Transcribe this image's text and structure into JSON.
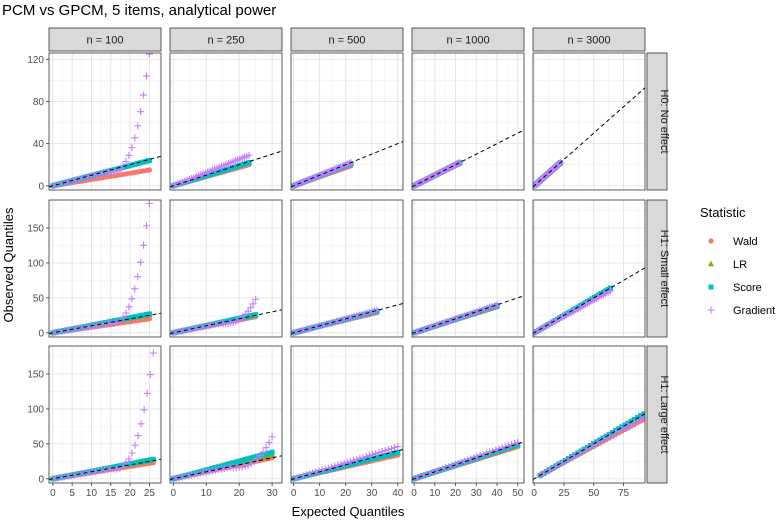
{
  "chart_data": {
    "type": "scatter",
    "title": "PCM vs GPCM, 5 items, analytical power",
    "xlabel": "Expected Quantiles",
    "ylabel": "Observed Quantiles",
    "facet_columns": [
      "n = 100",
      "n = 250",
      "n = 500",
      "n = 1000",
      "n = 3000"
    ],
    "facet_rows": [
      "H0: No effect",
      "H1: Small effect",
      "H1: Large effect"
    ],
    "grid": true,
    "legend": {
      "title": "Statistic",
      "placement": "right",
      "entries": [
        {
          "name": "Wald",
          "shape": "circle",
          "color": "#F8766D"
        },
        {
          "name": "LR",
          "shape": "triangle",
          "color": "#7CAE00"
        },
        {
          "name": "Score",
          "shape": "square",
          "color": "#00BFC4"
        },
        {
          "name": "Gradient",
          "shape": "plus",
          "color": "#C77CFF"
        }
      ]
    },
    "reference_line": {
      "style": "dashed",
      "color": "#000000",
      "description": "identity line y = x"
    },
    "panels": [
      {
        "row": 0,
        "col": 0,
        "xlim": [
          -1,
          28
        ],
        "ylim": [
          -4,
          126
        ],
        "xticks": [
          0,
          5,
          10,
          15,
          20,
          25
        ],
        "yticks": [
          0,
          40,
          80,
          120
        ],
        "xmax_data": 25,
        "endpoints": {
          "Wald": 15,
          "LR": 24,
          "Score": 24,
          "Gradient": 125
        }
      },
      {
        "row": 0,
        "col": 1,
        "xlim": [
          -1,
          33
        ],
        "ylim": [
          -4,
          126
        ],
        "xticks": [
          0,
          10,
          20,
          30
        ],
        "yticks": [
          0,
          40,
          80,
          120
        ],
        "xmax_data": 23,
        "endpoints": {
          "Wald": 20,
          "LR": 22,
          "Score": 22,
          "Gradient": 29
        }
      },
      {
        "row": 0,
        "col": 2,
        "xlim": [
          -1,
          42
        ],
        "ylim": [
          -4,
          126
        ],
        "xticks": [
          0,
          10,
          20,
          30,
          40
        ],
        "yticks": [
          0,
          40,
          80,
          120
        ],
        "xmax_data": 22,
        "endpoints": {
          "Wald": 19,
          "LR": 21,
          "Score": 21,
          "Gradient": 22
        }
      },
      {
        "row": 0,
        "col": 3,
        "xlim": [
          -1,
          53
        ],
        "ylim": [
          -4,
          126
        ],
        "xticks": [
          0,
          10,
          20,
          30,
          40,
          50
        ],
        "yticks": [
          0,
          40,
          80,
          120
        ],
        "xmax_data": 22,
        "endpoints": {
          "Wald": 21,
          "LR": 22,
          "Score": 22,
          "Gradient": 22
        }
      },
      {
        "row": 0,
        "col": 4,
        "xlim": [
          -1,
          93
        ],
        "ylim": [
          -4,
          126
        ],
        "xticks": [
          0,
          25,
          50,
          75
        ],
        "yticks": [
          0,
          40,
          80,
          120
        ],
        "xmax_data": 22,
        "endpoints": {
          "Wald": 21,
          "LR": 22,
          "Score": 22,
          "Gradient": 22
        }
      },
      {
        "row": 1,
        "col": 0,
        "xlim": [
          -1,
          28
        ],
        "ylim": [
          -6,
          190
        ],
        "xticks": [
          0,
          5,
          10,
          15,
          20,
          25
        ],
        "yticks": [
          0,
          50,
          100,
          150
        ],
        "xmax_data": 25,
        "endpoints": {
          "Wald": 20,
          "LR": 26,
          "Score": 27,
          "Gradient": 185
        }
      },
      {
        "row": 1,
        "col": 1,
        "xlim": [
          -1,
          33
        ],
        "ylim": [
          -6,
          190
        ],
        "xticks": [
          0,
          10,
          20,
          30
        ],
        "yticks": [
          0,
          50,
          100,
          150
        ],
        "xmax_data": 25,
        "endpoints": {
          "Wald": 23,
          "LR": 25,
          "Score": 26,
          "Gradient": 48
        }
      },
      {
        "row": 1,
        "col": 2,
        "xlim": [
          -1,
          42
        ],
        "ylim": [
          -6,
          190
        ],
        "xticks": [
          0,
          10,
          20,
          30,
          40
        ],
        "yticks": [
          0,
          50,
          100,
          150
        ],
        "xmax_data": 32,
        "endpoints": {
          "Wald": 29,
          "LR": 30,
          "Score": 31,
          "Gradient": 32
        }
      },
      {
        "row": 1,
        "col": 3,
        "xlim": [
          -1,
          53
        ],
        "ylim": [
          -6,
          190
        ],
        "xticks": [
          0,
          10,
          20,
          30,
          40,
          50
        ],
        "yticks": [
          0,
          50,
          100,
          150
        ],
        "xmax_data": 40,
        "endpoints": {
          "Wald": 37,
          "LR": 38,
          "Score": 39,
          "Gradient": 40
        }
      },
      {
        "row": 1,
        "col": 4,
        "xlim": [
          -1,
          93
        ],
        "ylim": [
          -6,
          190
        ],
        "xticks": [
          0,
          25,
          50,
          75
        ],
        "yticks": [
          0,
          50,
          100,
          150
        ],
        "xmax_data": 64,
        "endpoints": {
          "Wald": 62,
          "LR": 63,
          "Score": 64,
          "Gradient": 60
        }
      },
      {
        "row": 2,
        "col": 0,
        "xlim": [
          -1,
          28
        ],
        "ylim": [
          -6,
          190
        ],
        "xticks": [
          0,
          5,
          10,
          15,
          20,
          25
        ],
        "yticks": [
          0,
          50,
          100,
          150
        ],
        "xmax_data": 26,
        "endpoints": {
          "Wald": 23,
          "LR": 27,
          "Score": 28,
          "Gradient": 180
        }
      },
      {
        "row": 2,
        "col": 1,
        "xlim": [
          -1,
          33
        ],
        "ylim": [
          -6,
          190
        ],
        "xticks": [
          0,
          10,
          20,
          30
        ],
        "yticks": [
          0,
          50,
          100,
          150
        ],
        "xmax_data": 30,
        "endpoints": {
          "Wald": 30,
          "LR": 34,
          "Score": 38,
          "Gradient": 60
        }
      },
      {
        "row": 2,
        "col": 2,
        "xlim": [
          -1,
          42
        ],
        "ylim": [
          -6,
          190
        ],
        "xticks": [
          0,
          10,
          20,
          30,
          40
        ],
        "yticks": [
          0,
          50,
          100,
          150
        ],
        "xmax_data": 40,
        "endpoints": {
          "Wald": 34,
          "LR": 37,
          "Score": 38,
          "Gradient": 46
        }
      },
      {
        "row": 2,
        "col": 3,
        "xlim": [
          -1,
          53
        ],
        "ylim": [
          -6,
          190
        ],
        "xticks": [
          0,
          10,
          20,
          30,
          40,
          50
        ],
        "yticks": [
          0,
          50,
          100,
          150
        ],
        "xmax_data": 50,
        "endpoints": {
          "Wald": 46,
          "LR": 48,
          "Score": 49,
          "Gradient": 52
        }
      },
      {
        "row": 2,
        "col": 4,
        "xlim": [
          -1,
          93
        ],
        "ylim": [
          -6,
          190
        ],
        "xticks": [
          0,
          25,
          50,
          75
        ],
        "yticks": [
          0,
          50,
          100,
          150
        ],
        "xmax_data": 92,
        "xmin_data": 5,
        "endpoints": {
          "Wald": 85,
          "LR": 90,
          "Score": 93,
          "Gradient": 88
        }
      }
    ]
  }
}
